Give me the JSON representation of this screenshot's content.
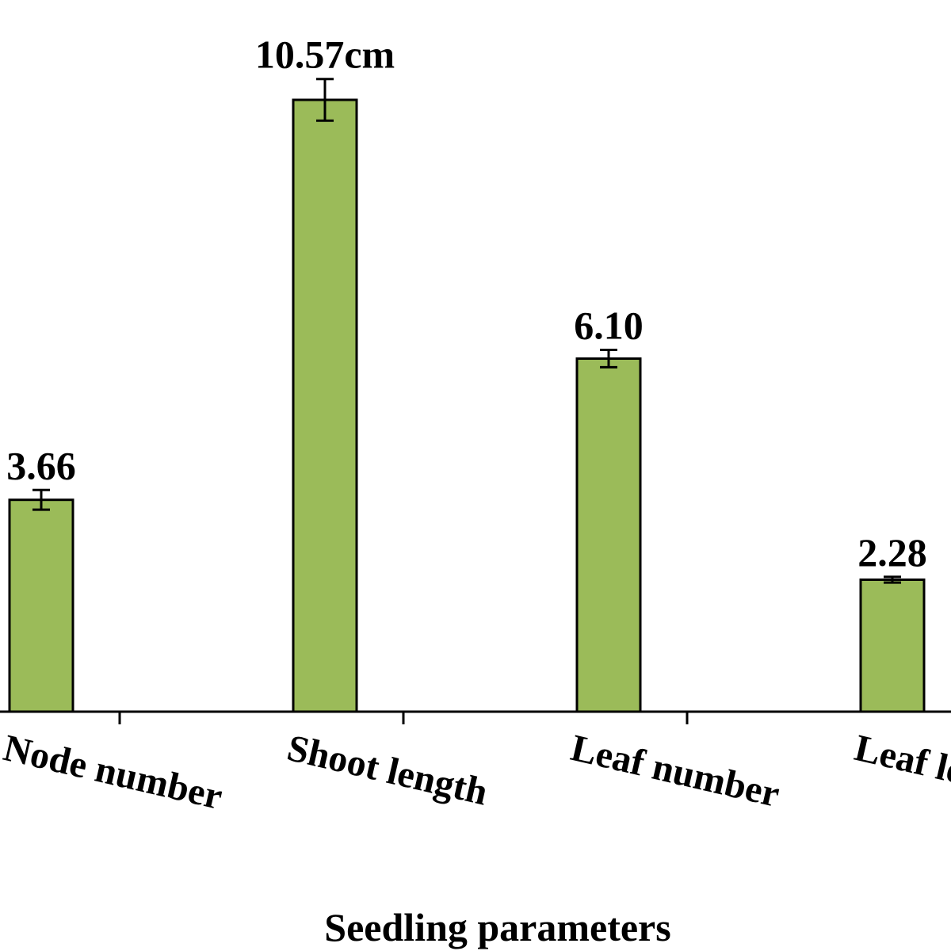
{
  "chart_data": {
    "type": "bar",
    "title": "",
    "xlabel": "Seedling parameters",
    "ylabel": "",
    "categories": [
      "Node number",
      "Shoot length",
      "Leaf number",
      "Leaf length"
    ],
    "values": [
      3.66,
      10.57,
      6.1,
      2.28
    ],
    "errors": [
      0.17,
      0.36,
      0.15,
      0.05
    ],
    "data_labels": [
      "3.66",
      "10.57cm",
      "6.10",
      "2.28"
    ],
    "ylim": [
      0,
      11.6
    ],
    "grid": false,
    "legend": "none",
    "colors": {
      "bar": "#9bbb59",
      "stroke": "#000000"
    }
  }
}
